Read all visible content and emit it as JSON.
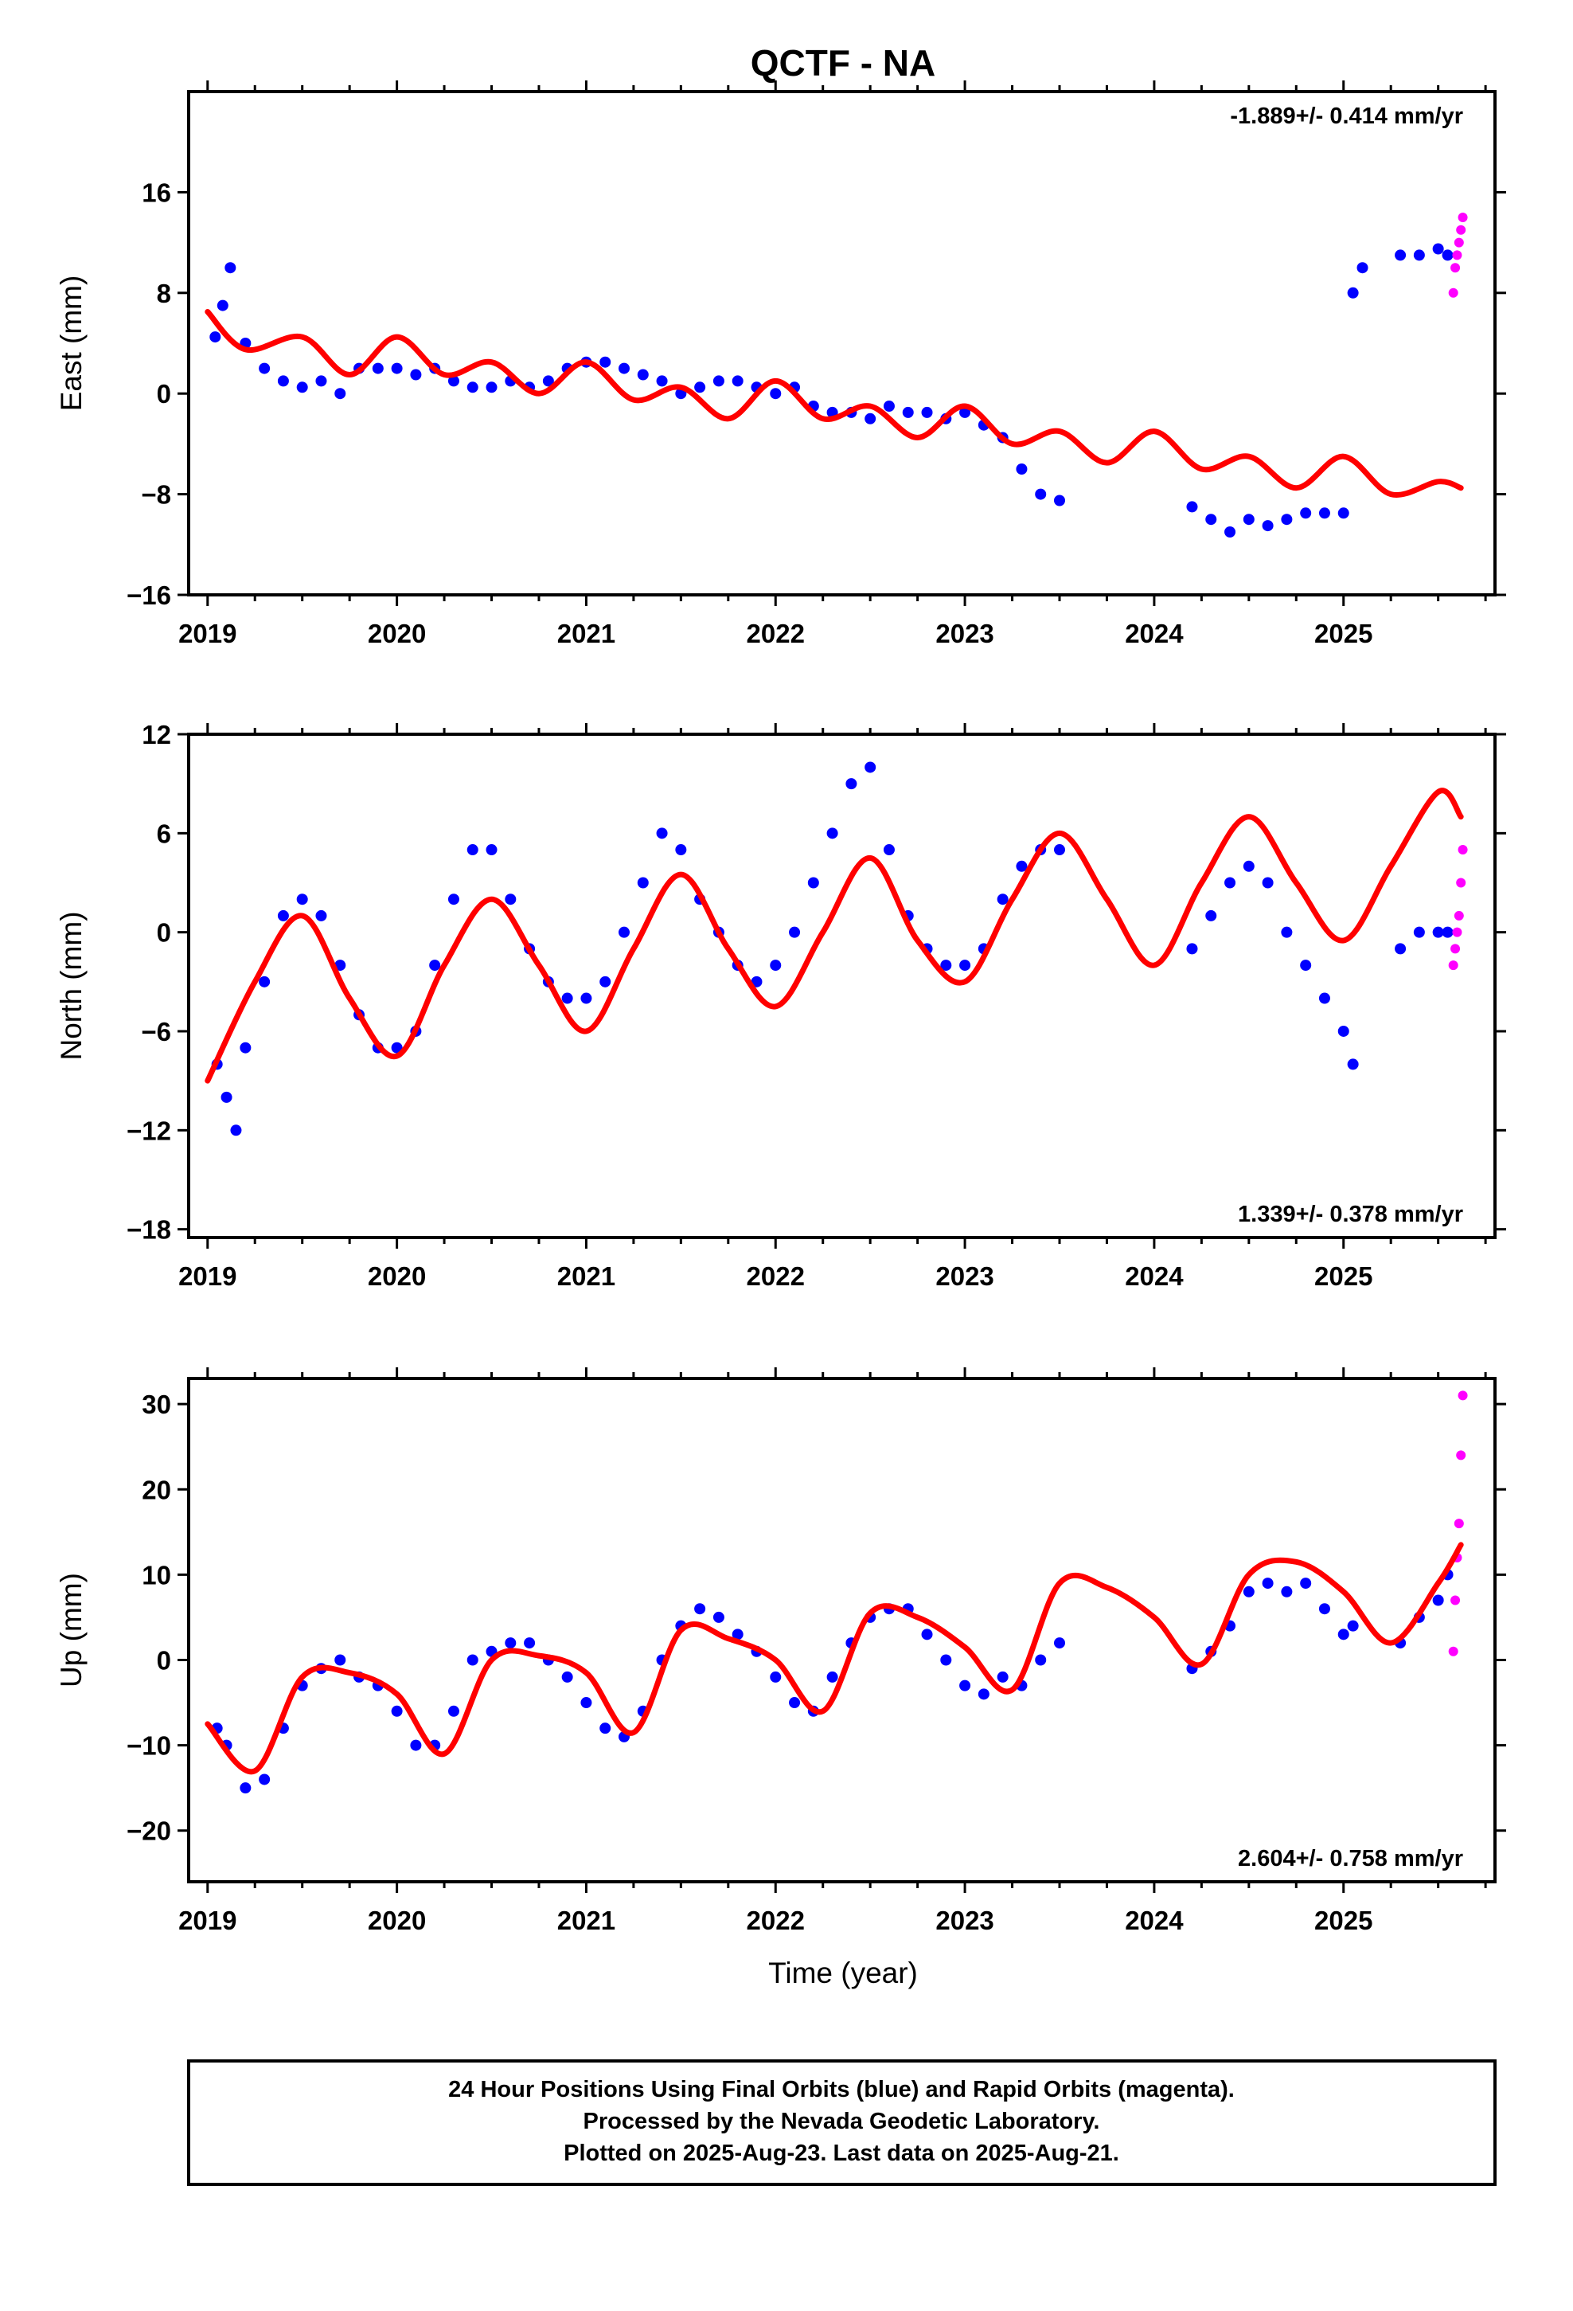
{
  "title": "QCTF - NA",
  "xlabel": "Time (year)",
  "footer": {
    "line1": "24 Hour Positions Using Final Orbits (blue) and Rapid Orbits (magenta).",
    "line2": "Processed by the Nevada Geodetic Laboratory.",
    "line3": "Plotted on 2025-Aug-23. Last data on 2025-Aug-21."
  },
  "colors": {
    "final": "#0000ff",
    "rapid": "#ff00ff",
    "model": "#ff0000",
    "frame": "#000000"
  },
  "chart_data": [
    {
      "type": "scatter",
      "ylabel": "East (mm)",
      "rate": "-1.889+/- 0.414 mm/yr",
      "rate_position": "top-right",
      "xlim": [
        2018.9,
        2025.8
      ],
      "ylim": [
        -16,
        24
      ],
      "xticks": [
        2019,
        2020,
        2021,
        2022,
        2023,
        2024,
        2025
      ],
      "yticks": [
        -16,
        -8,
        0,
        8,
        16
      ],
      "series": [
        {
          "x": [
            2019.04,
            2019.08,
            2019.12,
            2019.2,
            2019.3,
            2019.4,
            2019.5,
            2019.6,
            2019.7,
            2019.8,
            2019.9,
            2020.0,
            2020.1,
            2020.2,
            2020.3,
            2020.4,
            2020.5,
            2020.6,
            2020.7,
            2020.8,
            2020.9,
            2021.0,
            2021.1,
            2021.2,
            2021.3,
            2021.4,
            2021.5,
            2021.6,
            2021.7,
            2021.8,
            2021.9,
            2022.0,
            2022.1,
            2022.2,
            2022.3,
            2022.4,
            2022.5,
            2022.6,
            2022.7,
            2022.8,
            2022.9,
            2023.0,
            2023.1,
            2023.2,
            2023.3,
            2023.4,
            2023.5,
            2024.2,
            2024.3,
            2024.4,
            2024.5,
            2024.6,
            2024.7,
            2024.8,
            2024.9,
            2025.0,
            2025.05,
            2025.1,
            2025.3,
            2025.4,
            2025.5,
            2025.55
          ],
          "y": [
            4.5,
            7,
            10,
            4,
            2,
            1,
            0.5,
            1,
            0,
            2,
            2,
            2,
            1.5,
            2,
            1,
            0.5,
            0.5,
            1,
            0.5,
            1,
            2,
            2.5,
            2.5,
            2,
            1.5,
            1,
            0,
            0.5,
            1,
            1,
            0.5,
            0,
            0.5,
            -1,
            -1.5,
            -1.5,
            -2,
            -1,
            -1.5,
            -1.5,
            -2,
            -1.5,
            -2.5,
            -3.5,
            -6,
            -8,
            -8.5,
            -9,
            -10,
            -11,
            -10,
            -10.5,
            -10,
            -9.5,
            -9.5,
            -9.5,
            8,
            10,
            11,
            11,
            11.5,
            11
          ]
        },
        {
          "x": [
            2025.58,
            2025.59,
            2025.6,
            2025.61,
            2025.62,
            2025.63
          ],
          "y": [
            8,
            10,
            11,
            12,
            13,
            14
          ]
        },
        {
          "x": [
            2019.0,
            2019.2,
            2019.5,
            2019.75,
            2020.0,
            2020.25,
            2020.5,
            2020.75,
            2021.0,
            2021.25,
            2021.5,
            2021.75,
            2022.0,
            2022.25,
            2022.5,
            2022.75,
            2023.0,
            2023.25,
            2023.5,
            2023.75,
            2024.0,
            2024.25,
            2024.5,
            2024.75,
            2025.0,
            2025.25,
            2025.5,
            2025.62
          ],
          "y": [
            6.5,
            3.5,
            4.5,
            1.5,
            4.5,
            1.5,
            2.5,
            0,
            2.5,
            -0.5,
            0.5,
            -2,
            1,
            -2,
            -1,
            -3.5,
            -1,
            -4,
            -3,
            -5.5,
            -3,
            -6,
            -5,
            -7.5,
            -5,
            -8,
            -7,
            -7.5
          ]
        }
      ]
    },
    {
      "type": "scatter",
      "ylabel": "North (mm)",
      "rate": "1.339+/- 0.378 mm/yr",
      "rate_position": "bottom-right",
      "xlim": [
        2018.9,
        2025.8
      ],
      "ylim": [
        -18.5,
        12
      ],
      "xticks": [
        2019,
        2020,
        2021,
        2022,
        2023,
        2024,
        2025
      ],
      "yticks": [
        -18,
        -12,
        -6,
        0,
        6,
        12
      ],
      "series": [
        {
          "x": [
            2019.05,
            2019.1,
            2019.15,
            2019.2,
            2019.3,
            2019.4,
            2019.5,
            2019.6,
            2019.7,
            2019.8,
            2019.9,
            2020.0,
            2020.1,
            2020.2,
            2020.3,
            2020.4,
            2020.5,
            2020.6,
            2020.7,
            2020.8,
            2020.9,
            2021.0,
            2021.1,
            2021.2,
            2021.3,
            2021.4,
            2021.5,
            2021.6,
            2021.7,
            2021.8,
            2021.9,
            2022.0,
            2022.1,
            2022.2,
            2022.3,
            2022.4,
            2022.5,
            2022.6,
            2022.7,
            2022.8,
            2022.9,
            2023.0,
            2023.1,
            2023.2,
            2023.3,
            2023.4,
            2023.5,
            2024.2,
            2024.3,
            2024.4,
            2024.5,
            2024.6,
            2024.7,
            2024.8,
            2024.9,
            2025.0,
            2025.05,
            2025.3,
            2025.4,
            2025.5,
            2025.55
          ],
          "y": [
            -8,
            -10,
            -12,
            -7,
            -3,
            1,
            2,
            1,
            -2,
            -5,
            -7,
            -7,
            -6,
            -2,
            2,
            5,
            5,
            2,
            -1,
            -3,
            -4,
            -4,
            -3,
            0,
            3,
            6,
            5,
            2,
            0,
            -2,
            -3,
            -2,
            0,
            3,
            6,
            9,
            10,
            5,
            1,
            -1,
            -2,
            -2,
            -1,
            2,
            4,
            5,
            5,
            -1,
            1,
            3,
            4,
            3,
            0,
            -2,
            -4,
            -6,
            -8,
            -1,
            0,
            0,
            0
          ]
        },
        {
          "x": [
            2025.58,
            2025.59,
            2025.6,
            2025.61,
            2025.62,
            2025.63
          ],
          "y": [
            -2,
            -1,
            0,
            1,
            3,
            5
          ]
        },
        {
          "x": [
            2019.0,
            2019.25,
            2019.5,
            2019.75,
            2020.0,
            2020.25,
            2020.5,
            2020.75,
            2021.0,
            2021.25,
            2021.5,
            2021.75,
            2022.0,
            2022.25,
            2022.5,
            2022.75,
            2023.0,
            2023.25,
            2023.5,
            2023.75,
            2024.0,
            2024.25,
            2024.5,
            2024.75,
            2025.0,
            2025.25,
            2025.5,
            2025.62
          ],
          "y": [
            -9,
            -3,
            1,
            -4,
            -7.5,
            -2,
            2,
            -2,
            -6,
            -1,
            3.5,
            -1,
            -4.5,
            0,
            4.5,
            -0.5,
            -3,
            2,
            6,
            2,
            -2,
            3,
            7,
            3,
            -0.5,
            4,
            8.5,
            7
          ]
        }
      ]
    },
    {
      "type": "scatter",
      "ylabel": "Up (mm)",
      "rate": "2.604+/- 0.758 mm/yr",
      "rate_position": "bottom-right",
      "xlim": [
        2018.9,
        2025.8
      ],
      "ylim": [
        -26,
        33
      ],
      "xticks": [
        2019,
        2020,
        2021,
        2022,
        2023,
        2024,
        2025
      ],
      "xticklabels": [
        "2019",
        "2020",
        "2021",
        "2022",
        "2023",
        "2024",
        "2025"
      ],
      "yticks": [
        -20,
        -10,
        0,
        10,
        20,
        30
      ],
      "series": [
        {
          "x": [
            2019.05,
            2019.1,
            2019.2,
            2019.3,
            2019.4,
            2019.5,
            2019.6,
            2019.7,
            2019.8,
            2019.9,
            2020.0,
            2020.1,
            2020.2,
            2020.3,
            2020.4,
            2020.5,
            2020.6,
            2020.7,
            2020.8,
            2020.9,
            2021.0,
            2021.1,
            2021.2,
            2021.3,
            2021.4,
            2021.5,
            2021.6,
            2021.7,
            2021.8,
            2021.9,
            2022.0,
            2022.1,
            2022.2,
            2022.3,
            2022.4,
            2022.5,
            2022.6,
            2022.7,
            2022.8,
            2022.9,
            2023.0,
            2023.1,
            2023.2,
            2023.3,
            2023.4,
            2023.5,
            2024.2,
            2024.3,
            2024.4,
            2024.5,
            2024.6,
            2024.7,
            2024.8,
            2024.9,
            2025.0,
            2025.05,
            2025.3,
            2025.4,
            2025.5,
            2025.55
          ],
          "y": [
            -8,
            -10,
            -15,
            -14,
            -8,
            -3,
            -1,
            0,
            -2,
            -3,
            -6,
            -10,
            -10,
            -6,
            0,
            1,
            2,
            2,
            0,
            -2,
            -5,
            -8,
            -9,
            -6,
            0,
            4,
            6,
            5,
            3,
            1,
            -2,
            -5,
            -6,
            -2,
            2,
            5,
            6,
            6,
            3,
            0,
            -3,
            -4,
            -2,
            -3,
            0,
            2,
            -1,
            1,
            4,
            8,
            9,
            8,
            9,
            6,
            3,
            4,
            2,
            5,
            7,
            10
          ]
        },
        {
          "x": [
            2025.58,
            2025.59,
            2025.6,
            2025.61,
            2025.62,
            2025.63
          ],
          "y": [
            1,
            7,
            12,
            16,
            24,
            31
          ]
        },
        {
          "x": [
            2019.0,
            2019.25,
            2019.5,
            2019.75,
            2020.0,
            2020.25,
            2020.5,
            2020.75,
            2021.0,
            2021.25,
            2021.5,
            2021.75,
            2022.0,
            2022.25,
            2022.5,
            2022.75,
            2023.0,
            2023.25,
            2023.5,
            2023.75,
            2024.0,
            2024.25,
            2024.5,
            2024.75,
            2025.0,
            2025.25,
            2025.5,
            2025.62
          ],
          "y": [
            -7.5,
            -13,
            -2,
            -1.5,
            -4,
            -11,
            0,
            0.5,
            -1.5,
            -8.5,
            3.5,
            2.5,
            0,
            -6,
            5.5,
            5,
            1.5,
            -3.5,
            9,
            8.5,
            5,
            -0.5,
            10,
            11.5,
            8,
            2,
            9,
            13.5
          ]
        }
      ]
    }
  ]
}
